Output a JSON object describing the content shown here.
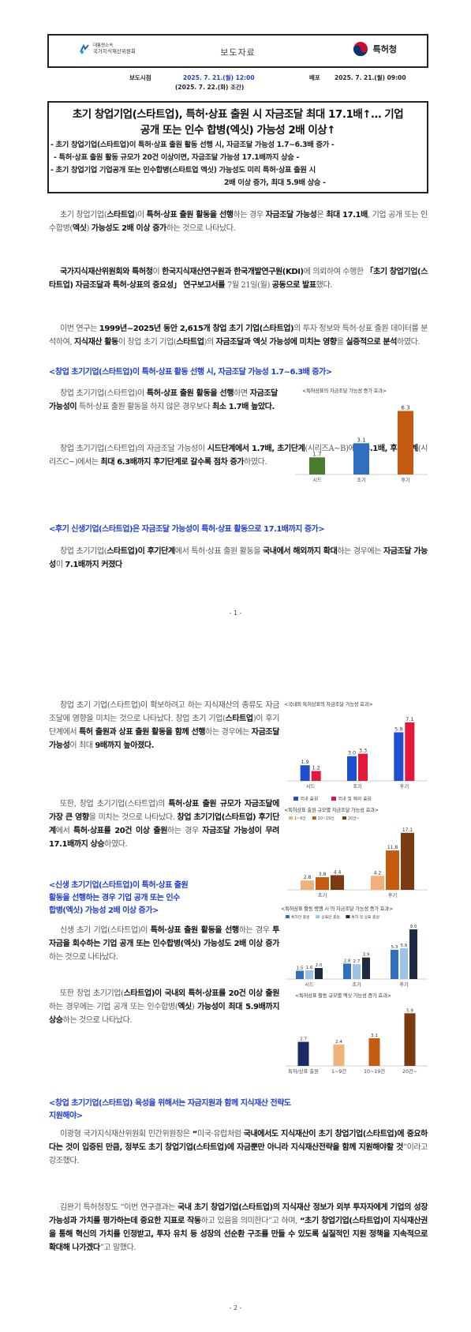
{
  "header": {
    "org_left_line1": "대통령소속",
    "org_left_line2": "국가지식재산위원회",
    "title": "보도자료",
    "org_right": "특허청"
  },
  "release": {
    "embargo_label": "보도시점",
    "embargo_line1": "2025. 7. 21.(월) 12:00",
    "embargo_line2": "(2025. 7. 22.(화) 조간)",
    "issue_label": "배포",
    "issue_date": "2025. 7. 21.(월) 09:00"
  },
  "headline": {
    "title_line1": "초기 창업기업(스타트업), 특허·상표 출원 시 자금조달 최대 17.1배↑… 기업",
    "title_line2": "공개 또는 인수 합병(엑싯) 가능성 2배 이상↑",
    "sub1": "- 초기 창업기업(스타트업)이 특허·상표 출원 활동 선행 시, 자금조달 가능성 1.7~6.3배 증가 -",
    "sub2": "- 특허·상표 출원 활동 규모가 20건 이상이면, 자금조달 가능성 17.1배까지 상승 -",
    "sub3a": "- 초기 창업기업 기업공개 또는 인수합병(스타트업 엑싯) 가능성도 미리 특허·상표 출원 시",
    "sub3b": "2배 이상 증가, 최대 5.9배 상승 -"
  },
  "page1": {
    "p1": [
      {
        "t": "초기 창업기업(",
        "b": false
      },
      {
        "t": "스타트업",
        "b": true
      },
      {
        "t": ")이 ",
        "b": false
      },
      {
        "t": "특허·상표 출원 활동을 선행",
        "b": true
      },
      {
        "t": "하는 경우 ",
        "b": false
      },
      {
        "t": "자금조달 가능성",
        "b": true
      },
      {
        "t": "은 ",
        "b": false
      },
      {
        "t": "최대 17.1배",
        "b": true
      },
      {
        "t": ", 기업 공개 또는 인수합병(",
        "b": false
      },
      {
        "t": "엑싯",
        "b": true
      },
      {
        "t": ") ",
        "b": false
      },
      {
        "t": "가능성도 2배 이상 증가",
        "b": true
      },
      {
        "t": "하는 것으로 나타났다.",
        "b": false
      }
    ],
    "p2": [
      {
        "t": "국가지식재산위원회와 특허청",
        "b": true
      },
      {
        "t": "이 ",
        "b": false
      },
      {
        "t": "한국지식재산연구원과 한국개발연구원(KDI)",
        "b": true
      },
      {
        "t": "에 의뢰하여 수행한 ",
        "b": false
      },
      {
        "t": "「초기 창업기업(스타트업) 자금조달과 특허·상표의 중요성」 연구보고서를",
        "b": true
      },
      {
        "t": " 7월 21일(월) ",
        "b": false
      },
      {
        "t": "공동으로 발표",
        "b": true
      },
      {
        "t": "했다.",
        "b": false
      }
    ],
    "p3": [
      {
        "t": "이번 연구는 ",
        "b": false
      },
      {
        "t": "1999년~2025년 동안 2,615개 창업 초기 기업(스타트업)",
        "b": true
      },
      {
        "t": "의 투자 정보와 특허·상표 출원 데이터를 분석하여, ",
        "b": false
      },
      {
        "t": "지식재산 활동",
        "b": true
      },
      {
        "t": "이 창업 초기 기업(",
        "b": false
      },
      {
        "t": "스타트업",
        "b": true
      },
      {
        "t": ")의 ",
        "b": false
      },
      {
        "t": "자금조달과 엑싯 가능성에 미치는 영향",
        "b": true
      },
      {
        "t": "을 ",
        "b": false
      },
      {
        "t": "실증적으로 분석",
        "b": true
      },
      {
        "t": "하였다.",
        "b": false
      }
    ],
    "sec1": "<창업 초기기업(스타트업)이 특허·상표 활동 선행 시, 자금조달 가능성 1.7~6.3배 증가>",
    "p4": [
      {
        "t": "창업 초기기업(스타트업)이 ",
        "b": false
      },
      {
        "t": "특허·상표 출원 활동을 선행",
        "b": true
      },
      {
        "t": "하면 ",
        "b": false
      },
      {
        "t": "자금조달 가능성이",
        "b": true
      },
      {
        "t": " 특허·상표 출원 활동을 하지 않은 경우보다 ",
        "b": false
      },
      {
        "t": "최소 1.7배 높았다.",
        "b": true
      }
    ],
    "p5": [
      {
        "t": "창업 초기기업(스타트업)의 자금조달 가능성이 ",
        "b": false
      },
      {
        "t": "시드단계에서 1.7배, 초기단계",
        "b": true
      },
      {
        "t": "(시리즈A~B)에서 ",
        "b": false
      },
      {
        "t": "3.1배, 후기단계",
        "b": true
      },
      {
        "t": "(시리즈C~)에서는 ",
        "b": false
      },
      {
        "t": "최대 6.3배까지 후기단계로 갈수록 점차 증가",
        "b": true
      },
      {
        "t": "하였다.",
        "b": false
      }
    ],
    "sec2": "<후기 신생기업(스타트업)은 자금조달 가능성이 특허·상표 활동으로 17.1배까지 증가>",
    "p6": [
      {
        "t": "창업 초기기업(",
        "b": false
      },
      {
        "t": "스타트업)이 후기단계",
        "b": true
      },
      {
        "t": "에서 특허·상표 출원 활동을 ",
        "b": false
      },
      {
        "t": "국내에서 해외까지 확대",
        "b": true
      },
      {
        "t": "하는 경우에는 ",
        "b": false
      },
      {
        "t": "자금조달 가능성",
        "b": true
      },
      {
        "t": "이 ",
        "b": false
      },
      {
        "t": "7.1배까지 커졌다",
        "b": true
      }
    ],
    "page_number": "- 1 -"
  },
  "page2": {
    "p1": [
      {
        "t": "창업 초기 기업(스타트업)이 확보하려고 하는 지식재산의 종류도 자금조달에 영향을 미치는 것으로 나타났다. 창업 초기 기업(",
        "b": false
      },
      {
        "t": "스타트업",
        "b": true
      },
      {
        "t": ")이 후기단계에서 ",
        "b": false
      },
      {
        "t": "특허 출원과 상표 출원 활동을 함께 선행",
        "b": true
      },
      {
        "t": "하는 경우에는 ",
        "b": false
      },
      {
        "t": "자금조달 가능성",
        "b": true
      },
      {
        "t": "이 최대 ",
        "b": false
      },
      {
        "t": "9배까지 높아졌다.",
        "b": true
      }
    ],
    "p2": [
      {
        "t": "또한, 창업 초기기업(스타트업)의 ",
        "b": false
      },
      {
        "t": "특허·상표 출원 규모가 자금조달에 가장 큰 영향",
        "b": true
      },
      {
        "t": "을 미치는 것으로 나타났다. ",
        "b": false
      },
      {
        "t": "창업 초기기업(스타트업) 후기단계",
        "b": true
      },
      {
        "t": "에서 ",
        "b": false
      },
      {
        "t": "특허·상표를 20건 이상 출원",
        "b": true
      },
      {
        "t": "하는 경우 ",
        "b": false
      },
      {
        "t": "자금조달 가능성이 무려 17.1배까지 상승",
        "b": true
      },
      {
        "t": "하였다.",
        "b": false
      }
    ],
    "sec3_line1": "<신생 초기기업(스타트업)이 특허·상표 출원",
    "sec3_line2": "활동을 선행하는 경우 기업 공개 또는 인수",
    "sec3_line3": "합병(엑싯) 가능성 2배 이상 증가>",
    "p3": [
      {
        "t": "신생 초기 기업(스타트업)이 ",
        "b": false
      },
      {
        "t": "특허·상표 출원 활동을 선행",
        "b": true
      },
      {
        "t": "하는 경우 ",
        "b": false
      },
      {
        "t": "투자금을 회수하는 기업 공개 또는 인수합병(엑싯) 가능성도 2배 이상 증가",
        "b": true
      },
      {
        "t": "하는 것으로 나타났다.",
        "b": false
      }
    ],
    "p4": [
      {
        "t": "또한 창업 초기기업(",
        "b": false
      },
      {
        "t": "스타트업)이 국내외 특허·상표를 20건 이상 출원",
        "b": true
      },
      {
        "t": "하는 경우에는 기업 공개 또는 인수합병(",
        "b": false
      },
      {
        "t": "엑싯",
        "b": true
      },
      {
        "t": ") ",
        "b": false
      },
      {
        "t": "가능성이 최대 5.9배까지 상승",
        "b": true
      },
      {
        "t": "하는 것으로 나타났다.",
        "b": false
      }
    ],
    "sec4_line1": "<창업 초기기업(스타트업) 육성을 위해서는 자금지원과 함께 지식재산 전략도",
    "sec4_line2": "지원해야>",
    "p5": [
      {
        "t": "이광형 국가지식재산위원회 민간위원장은 ",
        "b": false
      },
      {
        "t": "“",
        "b": true
      },
      {
        "t": "미국·유럽처럼 ",
        "b": false
      },
      {
        "t": "국내에서도 지식재산이 초기 창업기업(스타트업)에 중요하다는 것이 입증된 만큼, 정부도 초기 창업기업(스타트업)에 자금뿐만 아니라 지식재산전략을 함께 지원해야할 것",
        "b": true
      },
      {
        "t": "”이라고 강조했다.",
        "b": false
      }
    ],
    "p6": [
      {
        "t": "김완기 특허청장도 “이번 연구결과는 ",
        "b": false
      },
      {
        "t": "국내 초기 창업기업(스타트업)의 지식재산 정보가 외부 투자자에게 기업의 성장 가능성과 가치를 평가하는데 중요한 지표로 작동",
        "b": true
      },
      {
        "t": "하고 있음을 의미한다”고 하며, ",
        "b": false
      },
      {
        "t": "“초기 창업기업(스타트업)이 지식재산권을 통해 혁신의 가치를 인정받고, 투자 유치 등 성장의 선순환 구조를 만들 수 있도록 실질적인 지원 정책을 지속적으로 확대해 나가겠다",
        "b": true
      },
      {
        "t": "”고 말했다.",
        "b": false
      }
    ],
    "page_number": "- 2 -"
  },
  "chart_data": [
    {
      "type": "bar",
      "title": "<특허상표의 자금조달 가능성 증가 효과>",
      "categories": [
        "시드",
        "초기",
        "후기"
      ],
      "values": [
        1.7,
        3.1,
        6.3
      ],
      "colors": [
        "#4a7c2f",
        "#2f6fbd",
        "#c55a11"
      ]
    },
    {
      "type": "bar",
      "title": "<국내외 특허상표의 자금조달 가능성 효과>",
      "categories": [
        "시드",
        "초기",
        "후기"
      ],
      "series": [
        {
          "name": "국내 출원",
          "values": [
            1.9,
            3.0,
            5.9
          ],
          "color": "#1f4fd1"
        },
        {
          "name": "국내 및 해외 출원",
          "values": [
            1.2,
            3.3,
            7.1
          ],
          "color": "#e3183a"
        }
      ]
    },
    {
      "type": "bar",
      "title": "<특허상표 출원 규모별 자금조달 가능성 효과>",
      "categories": [
        "초기",
        "후기"
      ],
      "series": [
        {
          "name": "1~9건",
          "values": [
            2.8,
            4.2
          ],
          "color": "#f0b27a"
        },
        {
          "name": "10~19건",
          "values": [
            3.8,
            11.8
          ],
          "color": "#c55a11"
        },
        {
          "name": "20건~",
          "values": [
            4.4,
            17.1
          ],
          "color": "#7b3a10"
        }
      ]
    },
    {
      "type": "bar",
      "title": "<특허상표 활동 병행 시 의 자금조달 가능성 증가 효과>",
      "categories": [
        "시드",
        "초기",
        "후기"
      ],
      "series": [
        {
          "name": "특허만 출원",
          "values": [
            1.5,
            2.8,
            5.3
          ],
          "color": "#2f6fbd"
        },
        {
          "name": "상표만 출원",
          "values": [
            1.6,
            2.7,
            5.6
          ],
          "color": "#9bc3e6"
        },
        {
          "name": "특허 및 상표 출원",
          "values": [
            2.0,
            3.9,
            9.0
          ],
          "color": "#1e2a44"
        }
      ]
    },
    {
      "type": "bar",
      "title": "<특허상표 활동 규모별 엑싯 가능성 증가 효과>",
      "categories": [
        "특허/상표 출원",
        "1~9건",
        "10~19건",
        "20건~"
      ],
      "values": [
        2.7,
        2.4,
        3.1,
        5.9
      ],
      "colors": [
        "#1e2a66",
        "#f0b27a",
        "#c55a11",
        "#7b3a10"
      ]
    }
  ]
}
